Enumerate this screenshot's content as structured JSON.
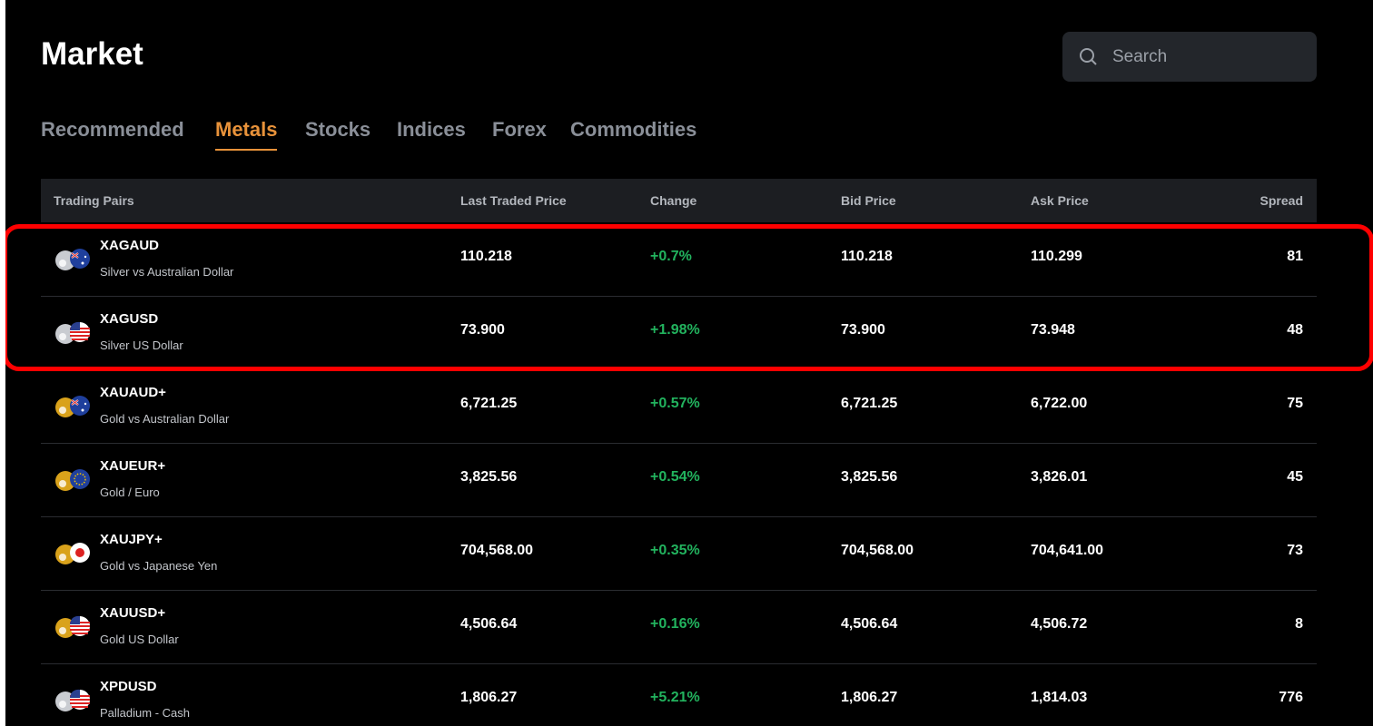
{
  "header": {
    "title": "Market",
    "search_placeholder": "Search"
  },
  "tabs": {
    "items": [
      "Recommended",
      "Metals",
      "Stocks",
      "Indices",
      "Forex",
      "Commodities"
    ],
    "active": 1
  },
  "table": {
    "columns": [
      "Trading Pairs",
      "Last Traded Price",
      "Change",
      "Bid Price",
      "Ask Price",
      "Spread"
    ],
    "rows": [
      {
        "symbol": "XAGAUD",
        "name": "Silver vs Australian Dollar",
        "last": "110.218",
        "change": "+0.7%",
        "bid": "110.218",
        "ask": "110.299",
        "spread": "81"
      },
      {
        "symbol": "XAGUSD",
        "name": "Silver US Dollar",
        "last": "73.900",
        "change": "+1.98%",
        "bid": "73.900",
        "ask": "73.948",
        "spread": "48"
      },
      {
        "symbol": "XAUAUD+",
        "name": "Gold vs Australian Dollar",
        "last": "6,721.25",
        "change": "+0.57%",
        "bid": "6,721.25",
        "ask": "6,722.00",
        "spread": "75"
      },
      {
        "symbol": "XAUEUR+",
        "name": "Gold / Euro",
        "last": "3,825.56",
        "change": "+0.54%",
        "bid": "3,825.56",
        "ask": "3,826.01",
        "spread": "45"
      },
      {
        "symbol": "XAUJPY+",
        "name": "Gold vs Japanese Yen",
        "last": "704,568.00",
        "change": "+0.35%",
        "bid": "704,568.00",
        "ask": "704,641.00",
        "spread": "73"
      },
      {
        "symbol": "XAUUSD+",
        "name": "Gold US Dollar",
        "last": "4,506.64",
        "change": "+0.16%",
        "bid": "4,506.64",
        "ask": "4,506.72",
        "spread": "8"
      },
      {
        "symbol": "XPDUSD",
        "name": "Palladium - Cash",
        "last": "1,806.27",
        "change": "+5.21%",
        "bid": "1,806.27",
        "ask": "1,814.03",
        "spread": "776"
      }
    ]
  }
}
